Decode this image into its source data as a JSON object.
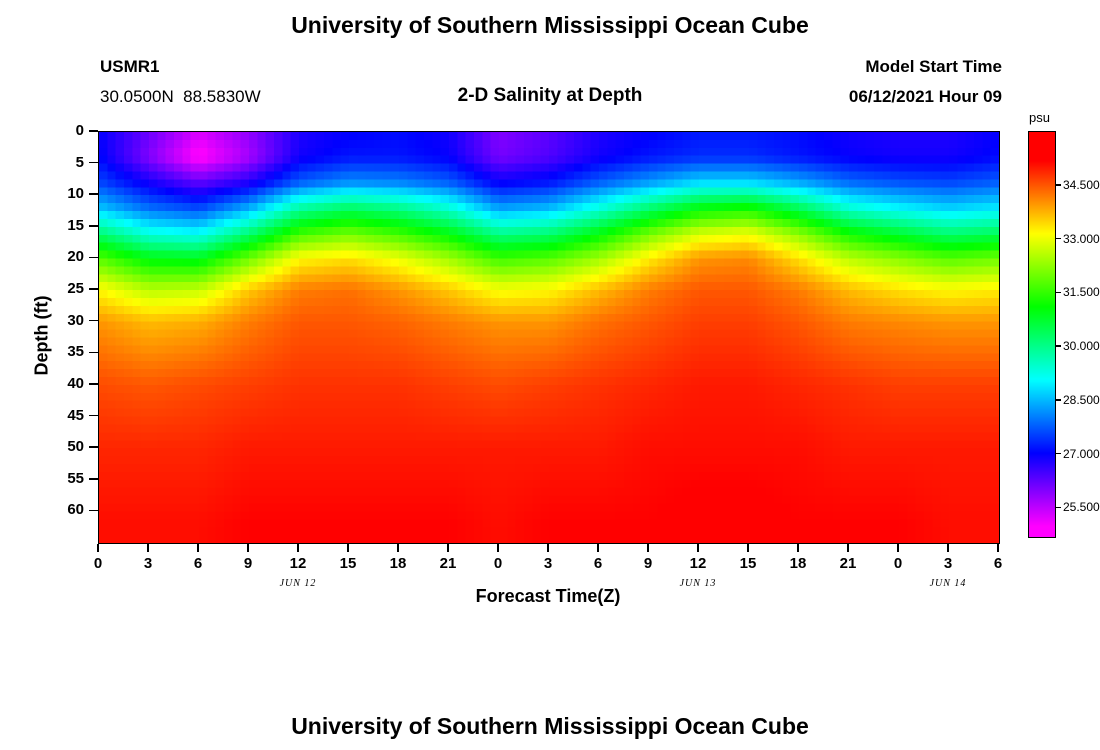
{
  "page": {
    "title": "University of Southern Mississippi Ocean Cube",
    "bottom_title": "University of Southern Mississippi Ocean Cube"
  },
  "header": {
    "station": "USMR1",
    "coordinates": "30.0500N  88.5830W",
    "plot_title": "2-D Salinity at Depth",
    "model_start_label": "Model Start Time",
    "model_start_value": "06/12/2021 Hour 09"
  },
  "chart_data": {
    "type": "heatmap",
    "title": "2-D Salinity at Depth",
    "xlabel": "Forecast Time(Z)",
    "ylabel": "Depth (ft)",
    "units": "psu",
    "time_range": [
      0,
      54
    ],
    "depth_range": [
      0,
      65
    ],
    "x_hours": [
      0,
      3,
      6,
      9,
      12,
      15,
      18,
      21,
      24,
      27,
      30,
      33,
      36,
      39,
      42,
      45,
      48,
      51,
      54
    ],
    "x_tick_labels": [
      "0",
      "3",
      "6",
      "9",
      "12",
      "15",
      "18",
      "21",
      "0",
      "3",
      "6",
      "9",
      "12",
      "15",
      "18",
      "21",
      "0",
      "3",
      "6"
    ],
    "date_labels": [
      {
        "label": "JUN 12",
        "hour": 12
      },
      {
        "label": "JUN 13",
        "hour": 36
      },
      {
        "label": "JUN 14",
        "hour": 51
      }
    ],
    "y_ticks": [
      0,
      5,
      10,
      15,
      20,
      25,
      30,
      35,
      40,
      45,
      50,
      55,
      60
    ],
    "depths": [
      0,
      4,
      8,
      12,
      16,
      20,
      25,
      30,
      40,
      50,
      62
    ],
    "grid": [
      [
        27.0,
        26.2,
        25.3,
        25.9,
        26.8,
        27.0,
        27.1,
        26.9,
        26.0,
        26.3,
        26.8,
        27.0,
        27.2,
        27.2,
        27.1,
        26.9,
        26.8,
        26.8,
        27.0
      ],
      [
        27.1,
        26.0,
        24.9,
        25.7,
        26.9,
        27.2,
        27.2,
        27.0,
        26.1,
        26.4,
        26.9,
        27.2,
        27.4,
        27.4,
        27.2,
        27.0,
        26.9,
        26.9,
        27.1
      ],
      [
        27.6,
        26.9,
        26.3,
        26.8,
        27.8,
        28.2,
        28.1,
        27.8,
        27.0,
        27.2,
        27.8,
        28.3,
        28.8,
        28.8,
        28.4,
        27.9,
        27.7,
        27.6,
        27.8
      ],
      [
        28.6,
        27.9,
        27.6,
        28.4,
        29.8,
        30.3,
        30.0,
        29.4,
        28.3,
        28.5,
        29.3,
        30.2,
        31.0,
        31.2,
        30.4,
        29.4,
        29.0,
        28.7,
        28.9
      ],
      [
        30.2,
        29.3,
        29.1,
        30.2,
        31.6,
        32.0,
        31.6,
        31.0,
        30.0,
        30.2,
        31.0,
        32.0,
        32.8,
        33.0,
        32.2,
        31.2,
        30.7,
        30.2,
        30.4
      ],
      [
        31.8,
        31.0,
        30.9,
        32.0,
        33.2,
        33.4,
        33.0,
        32.4,
        31.6,
        31.8,
        32.4,
        33.3,
        34.0,
        34.1,
        33.4,
        32.6,
        32.2,
        31.8,
        32.0
      ],
      [
        33.2,
        32.6,
        32.7,
        33.6,
        34.2,
        34.3,
        34.0,
        33.6,
        33.1,
        33.2,
        33.7,
        34.2,
        34.5,
        34.5,
        34.2,
        33.7,
        33.4,
        33.2,
        33.3
      ],
      [
        34.0,
        33.7,
        33.8,
        34.2,
        34.5,
        34.5,
        34.4,
        34.2,
        34.0,
        34.0,
        34.3,
        34.5,
        34.7,
        34.7,
        34.5,
        34.2,
        34.1,
        34.0,
        34.0
      ],
      [
        34.6,
        34.5,
        34.6,
        34.7,
        34.8,
        34.8,
        34.8,
        34.7,
        34.6,
        34.7,
        34.8,
        34.9,
        35.0,
        35.0,
        34.9,
        34.8,
        34.7,
        34.7,
        34.7
      ],
      [
        34.9,
        34.9,
        34.9,
        35.0,
        35.0,
        35.0,
        35.0,
        35.0,
        35.0,
        35.0,
        35.0,
        35.1,
        35.1,
        35.1,
        35.1,
        35.0,
        35.0,
        35.0,
        35.0
      ],
      [
        35.1,
        35.1,
        35.1,
        35.2,
        35.2,
        35.2,
        35.2,
        35.2,
        35.1,
        35.2,
        35.2,
        35.2,
        35.3,
        35.3,
        35.2,
        35.2,
        35.2,
        35.1,
        35.1
      ]
    ],
    "colorbar": {
      "label": "psu",
      "tick_labels": [
        "34.500",
        "33.000",
        "31.500",
        "30.000",
        "28.500",
        "27.000",
        "25.500"
      ],
      "tick_values": [
        34.5,
        33.0,
        31.5,
        30.0,
        28.5,
        27.0,
        25.5
      ],
      "range": [
        24.7,
        36.0
      ]
    },
    "colormap": {
      "range": [
        25.0,
        35.2
      ],
      "hue_start": 300,
      "hue_end": 0
    }
  }
}
